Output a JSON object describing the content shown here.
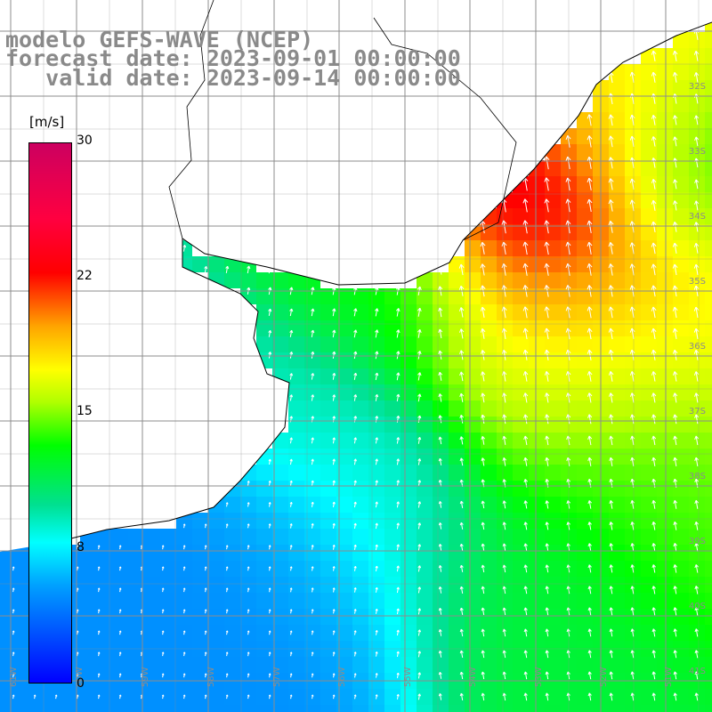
{
  "header": {
    "line1": "modelo GEFS-WAVE (NCEP)",
    "line2": "forecast date: 2023-09-01 00:00:00",
    "line3": "   valid date: 2023-09-14 00:00:00"
  },
  "colorbar": {
    "unit": "[m/s]",
    "ticks": [
      "30",
      "22",
      "15",
      "8",
      "0"
    ],
    "min": 0,
    "max": 30,
    "colors": [
      "#0000ff",
      "#00a0ff",
      "#00ffff",
      "#00e090",
      "#00ff00",
      "#b0ff00",
      "#ffff00",
      "#ffa500",
      "#ff0000",
      "#cc0060"
    ]
  },
  "map": {
    "field": "wind speed",
    "land_color": "#ffffff",
    "grid_color": "#8c8c8c",
    "arrow_color": "#ffffff",
    "lat_labels": [
      "32S",
      "33S",
      "34S",
      "35S",
      "36S",
      "37S",
      "38S",
      "39S",
      "40S",
      "41S"
    ],
    "lon_labels": [
      "61W",
      "60W",
      "59W",
      "58W",
      "57W",
      "56W",
      "55W",
      "54W",
      "53W",
      "52W",
      "51W"
    ]
  }
}
